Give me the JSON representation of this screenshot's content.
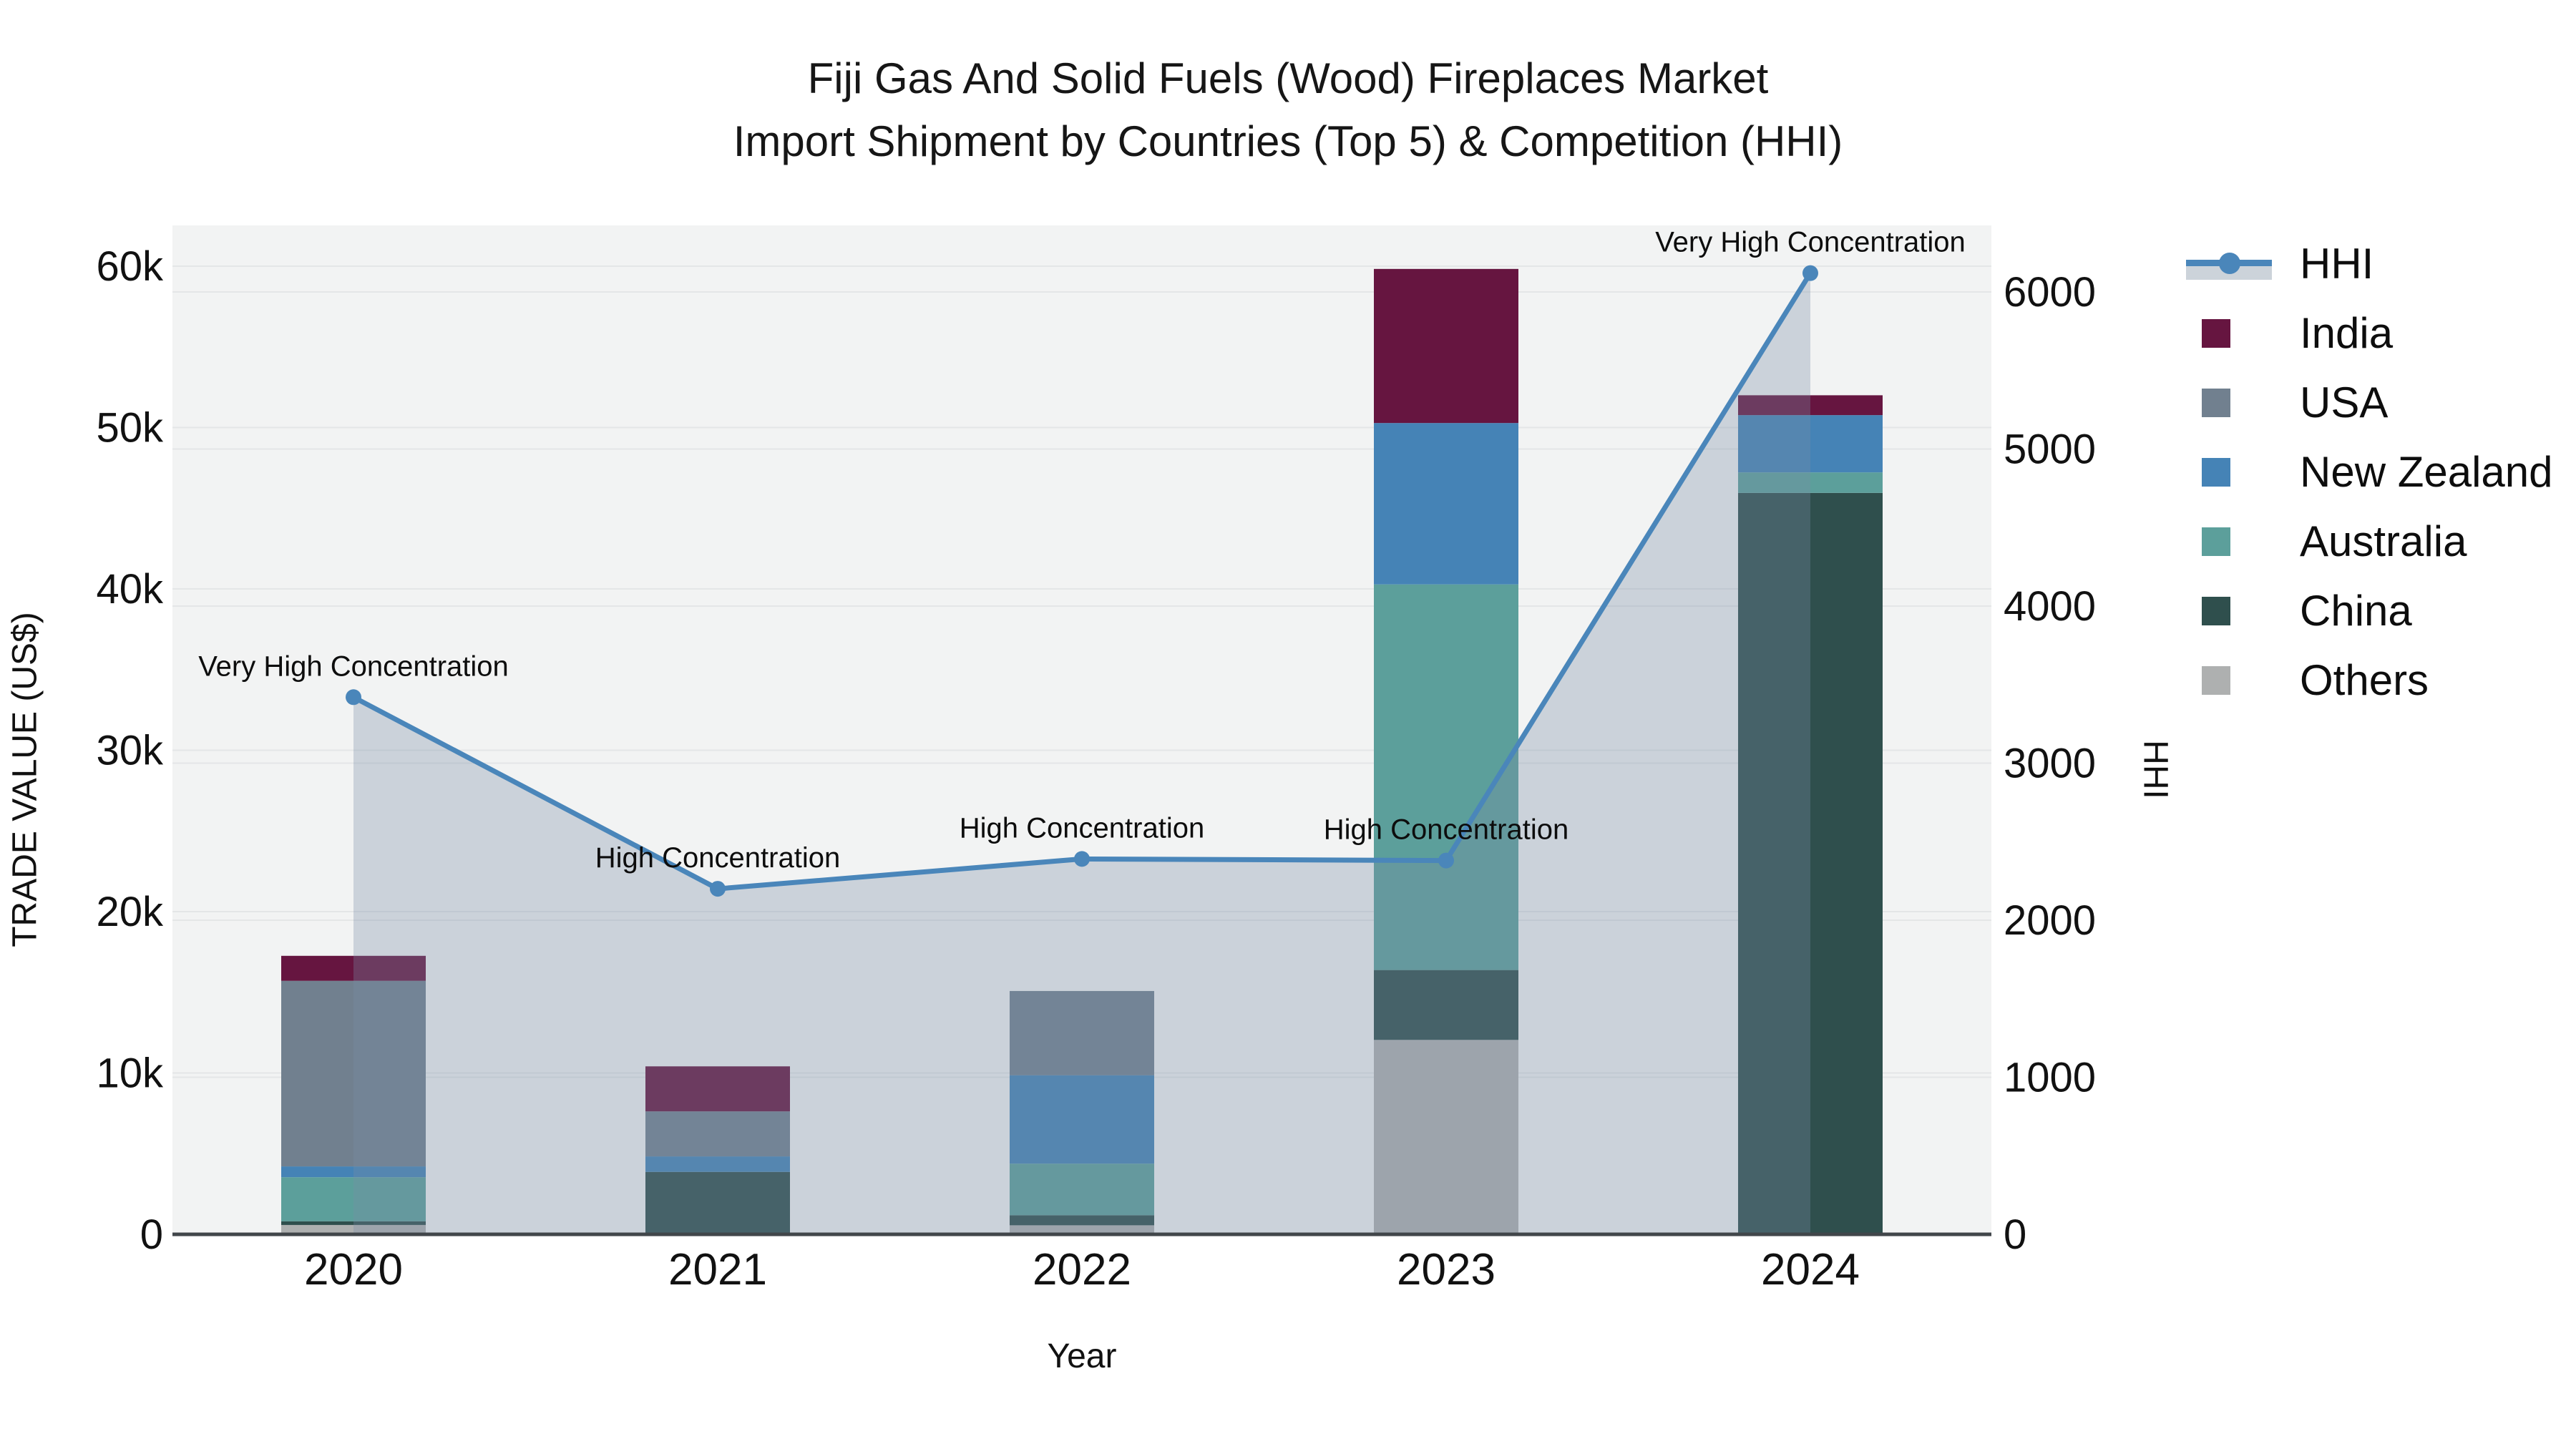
{
  "title": {
    "line1": "Fiji Gas And Solid Fuels (Wood) Fireplaces Market",
    "line2": "Import Shipment by Countries (Top 5) & Competition (HHI)"
  },
  "axes": {
    "x": {
      "label": "Year",
      "categories": [
        "2020",
        "2021",
        "2022",
        "2023",
        "2024"
      ]
    },
    "y_left": {
      "label": "TRADE VALUE (US$)",
      "tick_labels": [
        "0",
        "10k",
        "20k",
        "30k",
        "40k",
        "50k",
        "60k"
      ],
      "tick_values": [
        0,
        10000,
        20000,
        30000,
        40000,
        50000,
        60000
      ],
      "range": [
        0,
        62500
      ]
    },
    "y_right": {
      "label": "HHI",
      "tick_labels": [
        "0",
        "1000",
        "2000",
        "3000",
        "4000",
        "5000",
        "6000"
      ],
      "tick_values": [
        0,
        1000,
        2000,
        3000,
        4000,
        5000,
        6000
      ],
      "range": [
        0,
        6425
      ]
    }
  },
  "legend": {
    "items": [
      {
        "label": "HHI",
        "type": "line"
      },
      {
        "label": "India",
        "type": "swatch"
      },
      {
        "label": "USA",
        "type": "swatch"
      },
      {
        "label": "New Zealand",
        "type": "swatch"
      },
      {
        "label": "Australia",
        "type": "swatch"
      },
      {
        "label": "China",
        "type": "swatch"
      },
      {
        "label": "Others",
        "type": "swatch"
      }
    ]
  },
  "colors": {
    "India": "#661540",
    "USA": "#71808f",
    "New Zealand": "#4583b6",
    "Australia": "#5c9f9b",
    "China": "#2f4f4d",
    "Others": "#aeb0b0",
    "HHI": "#4a86ba",
    "hhi_area_fill": "rgba(120,140,165,0.32)",
    "plot_background": "#f2f3f3",
    "gridline": "#e4e6e7",
    "axis_line": "#41464a"
  },
  "chart_data": {
    "type": "bar+line",
    "title": "Fiji Gas And Solid Fuels (Wood) Fireplaces Market — Import Shipment by Countries (Top 5) & Competition (HHI)",
    "categories": [
      "2020",
      "2021",
      "2022",
      "2023",
      "2024"
    ],
    "xlabel": "Year",
    "ylabel_left": "TRADE VALUE (US$)",
    "ylabel_right": "HHI",
    "ylim_left": [
      0,
      62500
    ],
    "ylim_right": [
      0,
      6425
    ],
    "grid": true,
    "legend_position": "right",
    "stack_order_bottom_to_top": [
      "Others",
      "China",
      "Australia",
      "New Zealand",
      "USA",
      "India"
    ],
    "series": [
      {
        "name": "Others",
        "type": "bar",
        "stack": true,
        "axis": "left",
        "values": [
          580,
          0,
          560,
          12050,
          0
        ]
      },
      {
        "name": "China",
        "type": "bar",
        "stack": true,
        "axis": "left",
        "values": [
          230,
          3870,
          620,
          4330,
          45950
        ]
      },
      {
        "name": "Australia",
        "type": "bar",
        "stack": true,
        "axis": "left",
        "values": [
          2730,
          0,
          3200,
          23900,
          1270
        ]
      },
      {
        "name": "New Zealand",
        "type": "bar",
        "stack": true,
        "axis": "left",
        "values": [
          670,
          960,
          5480,
          10000,
          3550
        ]
      },
      {
        "name": "USA",
        "type": "bar",
        "stack": true,
        "axis": "left",
        "values": [
          11500,
          2790,
          5220,
          0,
          0
        ]
      },
      {
        "name": "India",
        "type": "bar",
        "stack": true,
        "axis": "left",
        "values": [
          1550,
          2790,
          0,
          9550,
          1230
        ]
      },
      {
        "name": "HHI",
        "type": "line",
        "axis": "right",
        "area_fill": true,
        "values": [
          3420,
          2200,
          2390,
          2380,
          6120
        ]
      }
    ],
    "bar_totals": [
      17260,
      10410,
      15080,
      59830,
      52000
    ],
    "annotations": [
      {
        "category": "2020",
        "text": "Very High Concentration"
      },
      {
        "category": "2021",
        "text": "High Concentration"
      },
      {
        "category": "2022",
        "text": "High Concentration"
      },
      {
        "category": "2023",
        "text": "High Concentration"
      },
      {
        "category": "2024",
        "text": "Very High Concentration"
      }
    ]
  }
}
